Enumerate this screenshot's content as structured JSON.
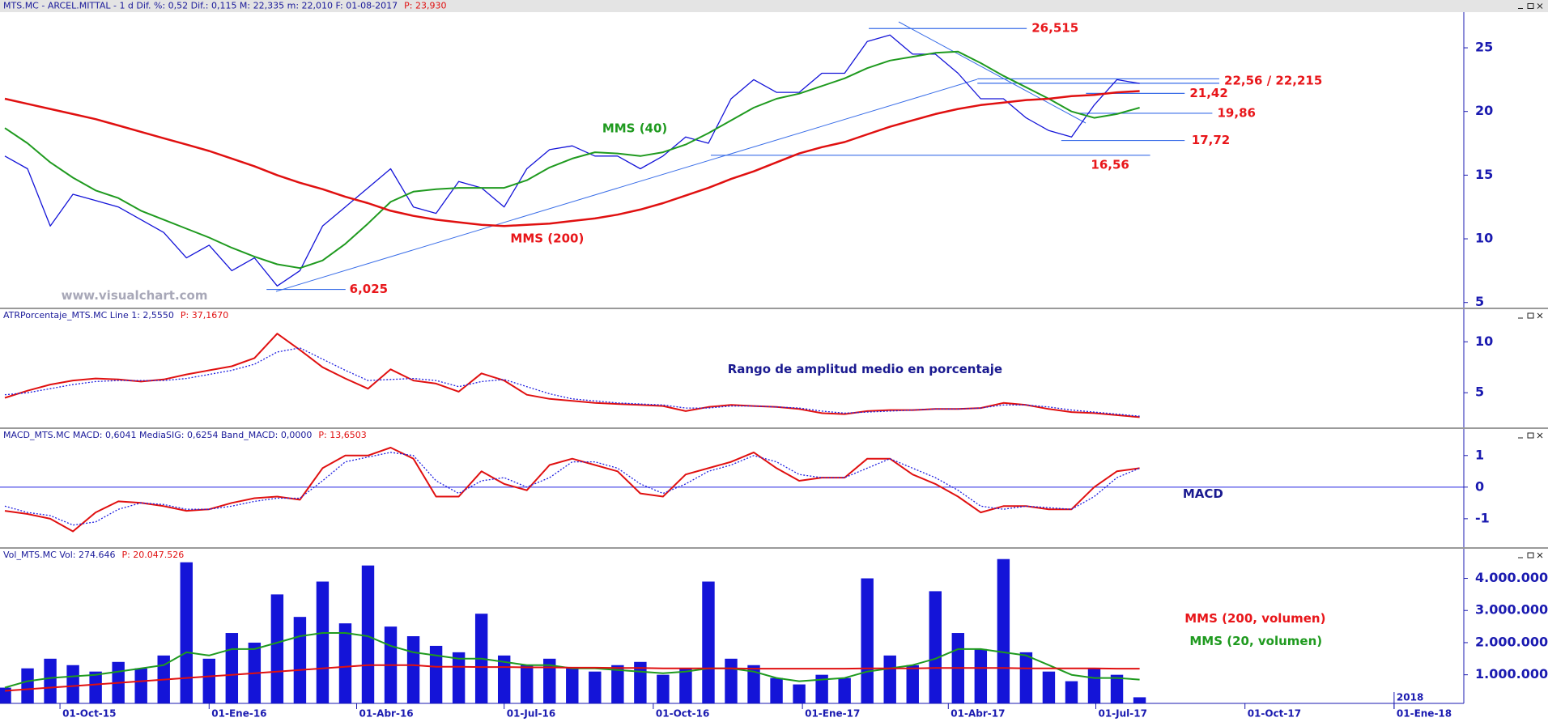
{
  "chart_data": {
    "type": "financial",
    "x": [
      "2015-08-28",
      "2015-09-11",
      "2015-09-25",
      "2015-10-09",
      "2015-10-23",
      "2015-11-06",
      "2015-11-20",
      "2015-12-04",
      "2015-12-18",
      "2016-01-01",
      "2016-01-15",
      "2016-01-29",
      "2016-02-12",
      "2016-02-26",
      "2016-03-11",
      "2016-03-25",
      "2016-04-08",
      "2016-04-22",
      "2016-05-06",
      "2016-05-20",
      "2016-06-03",
      "2016-06-17",
      "2016-07-01",
      "2016-07-15",
      "2016-07-29",
      "2016-08-12",
      "2016-08-26",
      "2016-09-09",
      "2016-09-23",
      "2016-10-07",
      "2016-10-21",
      "2016-11-04",
      "2016-11-18",
      "2016-12-02",
      "2016-12-16",
      "2016-12-30",
      "2017-01-13",
      "2017-01-27",
      "2017-02-10",
      "2017-02-24",
      "2017-03-10",
      "2017-03-24",
      "2017-04-07",
      "2017-04-21",
      "2017-05-05",
      "2017-05-19",
      "2017-06-02",
      "2017-06-16",
      "2017-06-30",
      "2017-07-14",
      "2017-07-28"
    ],
    "xlim": [
      "2015-08-25",
      "2018-02-13"
    ],
    "xticks": [
      {
        "value": "2015-10-01",
        "label": "01-Oct-15"
      },
      {
        "value": "2016-01-01",
        "label": "01-Ene-16"
      },
      {
        "value": "2016-04-01",
        "label": "01-Abr-16"
      },
      {
        "value": "2016-07-01",
        "label": "01-Jul-16"
      },
      {
        "value": "2016-10-01",
        "label": "01-Oct-16"
      },
      {
        "value": "2017-01-01",
        "label": "01-Ene-17"
      },
      {
        "value": "2017-04-01",
        "label": "01-Abr-17"
      },
      {
        "value": "2017-07-01",
        "label": "01-Jul-17"
      },
      {
        "value": "2017-10-01",
        "label": "01-Oct-17"
      },
      {
        "value": "2018-01-01",
        "label": "01-Ene-18"
      }
    ],
    "year_marker": {
      "value": "2018-01-01",
      "label": "2018"
    },
    "panels": [
      {
        "header": "MTS.MC - ARCEL.MITTAL -  1 d  Dif. %: 0,52  Dif.: 0,115  M: 22,335  m: 22,010  F: 01-08-2017",
        "header_p": "P: 23,930",
        "watermark": "www.visualchart.com",
        "ylim": [
          4.6,
          27.8
        ],
        "yticks": [
          5,
          10,
          15,
          20,
          25
        ],
        "series": [
          {
            "type": "line",
            "color": "#1414d8",
            "values": [
              16.5,
              15.5,
              11,
              13.5,
              13,
              12.5,
              11.5,
              10.5,
              8.5,
              9.5,
              7.5,
              8.5,
              6.3,
              7.5,
              11,
              12.5,
              14,
              15.5,
              12.5,
              12,
              14.5,
              14,
              12.5,
              15.5,
              17,
              17.3,
              16.5,
              16.5,
              15.5,
              16.5,
              18,
              17.5,
              21,
              22.5,
              21.5,
              21.5,
              23,
              23,
              25.5,
              26,
              24.5,
              24.5,
              23,
              21,
              21,
              19.5,
              18.5,
              18,
              20.5,
              22.5,
              22.2
            ]
          },
          {
            "type": "line",
            "color": "#1f9a1f",
            "width": 2,
            "values": [
              18.7,
              17.5,
              16,
              14.8,
              13.8,
              13.2,
              12.2,
              11.5,
              10.8,
              10.1,
              9.3,
              8.6,
              8.0,
              7.7,
              8.3,
              9.6,
              11.2,
              12.9,
              13.7,
              13.9,
              14,
              14,
              14,
              14.6,
              15.6,
              16.3,
              16.8,
              16.7,
              16.5,
              16.8,
              17.4,
              18.3,
              19.3,
              20.3,
              21,
              21.4,
              22,
              22.6,
              23.4,
              24,
              24.3,
              24.6,
              24.7,
              23.8,
              22.8,
              21.9,
              21,
              20,
              19.5,
              19.8,
              20.3
            ]
          },
          {
            "type": "line",
            "color": "#e01010",
            "width": 2.5,
            "values": [
              21,
              20.6,
              20.2,
              19.8,
              19.4,
              18.9,
              18.4,
              17.9,
              17.4,
              16.9,
              16.3,
              15.7,
              15.0,
              14.4,
              13.9,
              13.3,
              12.8,
              12.2,
              11.8,
              11.5,
              11.3,
              11.1,
              11.0,
              11.1,
              11.2,
              11.4,
              11.6,
              11.9,
              12.3,
              12.8,
              13.4,
              14.0,
              14.7,
              15.3,
              16.0,
              16.7,
              17.2,
              17.6,
              18.2,
              18.8,
              19.3,
              19.8,
              20.2,
              20.5,
              20.7,
              20.9,
              21.0,
              21.2,
              21.3,
              21.5,
              21.6
            ]
          }
        ],
        "levels": [
          {
            "value": 26.515,
            "label": "26,515"
          },
          {
            "values": [
              22.56,
              22.215
            ],
            "label": "22,56 / 22,215"
          },
          {
            "value": 21.42,
            "label": "21,42"
          },
          {
            "value": 19.86,
            "label": "19,86"
          },
          {
            "value": 17.72,
            "label": "17,72"
          },
          {
            "value": 16.56,
            "label": "16,56"
          },
          {
            "value": 6.025,
            "label": "6,025"
          }
        ],
        "level_color": "#3a6ee8",
        "level_label_color": "#e8161a",
        "annotations": [
          {
            "text": "MMS (40)",
            "color": "#1f9a1f"
          },
          {
            "text": "MMS (200)",
            "color": "#e8161a"
          }
        ]
      },
      {
        "header": "ATRPorcentaje_MTS.MC  Line 1: 2,5550",
        "header_p": "P: 37,1670",
        "ylim": [
          1.6,
          13.2
        ],
        "yticks": [
          5,
          10
        ],
        "series": [
          {
            "type": "line",
            "color": "#e01010",
            "width": 2,
            "values": [
              4.5,
              5.2,
              5.8,
              6.2,
              6.4,
              6.3,
              6.1,
              6.3,
              6.8,
              7.2,
              7.6,
              8.4,
              10.8,
              9.2,
              7.5,
              6.4,
              5.4,
              7.3,
              6.2,
              5.9,
              5.1,
              6.9,
              6.2,
              4.8,
              4.4,
              4.2,
              4.0,
              3.9,
              3.8,
              3.7,
              3.2,
              3.6,
              3.8,
              3.7,
              3.6,
              3.4,
              3.0,
              2.9,
              3.2,
              3.3,
              3.3,
              3.4,
              3.4,
              3.5,
              4.0,
              3.8,
              3.4,
              3.1,
              3.0,
              2.8,
              2.6
            ]
          },
          {
            "type": "line",
            "color": "#2020e0",
            "style": "dotted",
            "values": [
              4.8,
              5.0,
              5.4,
              5.8,
              6.1,
              6.2,
              6.2,
              6.2,
              6.4,
              6.8,
              7.2,
              7.8,
              9.0,
              9.4,
              8.3,
              7.2,
              6.2,
              6.3,
              6.4,
              6.2,
              5.6,
              6.1,
              6.3,
              5.6,
              4.9,
              4.4,
              4.2,
              4.0,
              3.9,
              3.8,
              3.5,
              3.5,
              3.7,
              3.7,
              3.6,
              3.5,
              3.2,
              3.0,
              3.1,
              3.2,
              3.3,
              3.4,
              3.4,
              3.5,
              3.8,
              3.8,
              3.6,
              3.3,
              3.1,
              2.9,
              2.7
            ]
          }
        ],
        "annotations": [
          {
            "text": "Rango de amplitud medio en porcentaje",
            "color": "#1a1a90"
          }
        ]
      },
      {
        "header": "MACD_MTS.MC  MACD: 0,6041  MediaSIG: 0,6254  Band_MACD: 0,0000",
        "header_p": "P: 13,6503",
        "ylim": [
          -1.9,
          1.84
        ],
        "yticks": [
          -1,
          0,
          1
        ],
        "baseline": 0,
        "baseline_color": "#2020e0",
        "series": [
          {
            "type": "line",
            "color": "#e01010",
            "width": 2,
            "values": [
              -0.75,
              -0.85,
              -1.0,
              -1.4,
              -0.8,
              -0.45,
              -0.5,
              -0.6,
              -0.75,
              -0.7,
              -0.5,
              -0.35,
              -0.3,
              -0.4,
              0.6,
              1.0,
              1.0,
              1.25,
              0.9,
              -0.3,
              -0.3,
              0.5,
              0.1,
              -0.1,
              0.7,
              0.9,
              0.7,
              0.5,
              -0.2,
              -0.3,
              0.4,
              0.6,
              0.8,
              1.1,
              0.6,
              0.2,
              0.3,
              0.3,
              0.9,
              0.9,
              0.4,
              0.1,
              -0.3,
              -0.8,
              -0.6,
              -0.6,
              -0.7,
              -0.7,
              0.0,
              0.5,
              0.6
            ]
          },
          {
            "type": "line",
            "color": "#2020e0",
            "style": "dotted",
            "values": [
              -0.6,
              -0.8,
              -0.9,
              -1.2,
              -1.1,
              -0.7,
              -0.5,
              -0.55,
              -0.7,
              -0.7,
              -0.6,
              -0.45,
              -0.35,
              -0.35,
              0.2,
              0.8,
              0.95,
              1.1,
              1.0,
              0.2,
              -0.2,
              0.2,
              0.3,
              0.0,
              0.3,
              0.8,
              0.8,
              0.6,
              0.1,
              -0.2,
              0.1,
              0.5,
              0.7,
              1.0,
              0.8,
              0.4,
              0.3,
              0.3,
              0.6,
              0.9,
              0.6,
              0.3,
              -0.1,
              -0.6,
              -0.7,
              -0.6,
              -0.65,
              -0.7,
              -0.3,
              0.3,
              0.6
            ]
          }
        ],
        "annotations": [
          {
            "text": "MACD",
            "color": "#1a1a90"
          }
        ]
      },
      {
        "header": "Vol_MTS.MC  Vol: 274.646",
        "header_p": "P: 20.047.526",
        "ylim": [
          110000,
          4920000
        ],
        "yticks": [
          {
            "value": 1000000,
            "label": "1.000.000"
          },
          {
            "value": 2000000,
            "label": "2.000.000"
          },
          {
            "value": 3000000,
            "label": "3.000.000"
          },
          {
            "value": 4000000,
            "label": "4.000.000"
          }
        ],
        "series": [
          {
            "type": "bar",
            "color": "#1414d8",
            "values": [
              600000,
              1200000,
              1500000,
              1300000,
              1100000,
              1400000,
              1200000,
              1600000,
              4500000,
              1500000,
              2300000,
              2000000,
              3500000,
              2800000,
              3900000,
              2600000,
              4400000,
              2500000,
              2200000,
              1900000,
              1700000,
              2900000,
              1600000,
              1300000,
              1500000,
              1200000,
              1100000,
              1300000,
              1400000,
              1000000,
              1200000,
              3900000,
              1500000,
              1300000,
              900000,
              700000,
              1000000,
              900000,
              4000000,
              1600000,
              1300000,
              3600000,
              2300000,
              1800000,
              4600000,
              1700000,
              1100000,
              800000,
              1200000,
              1000000,
              300000
            ]
          },
          {
            "type": "line",
            "color": "#1f9a1f",
            "width": 2,
            "values": [
              600000,
              800000,
              900000,
              950000,
              1000000,
              1100000,
              1200000,
              1300000,
              1700000,
              1600000,
              1800000,
              1800000,
              2000000,
              2200000,
              2300000,
              2300000,
              2200000,
              1900000,
              1700000,
              1600000,
              1500000,
              1500000,
              1400000,
              1300000,
              1300000,
              1200000,
              1200000,
              1150000,
              1100000,
              1050000,
              1100000,
              1200000,
              1200000,
              1100000,
              900000,
              800000,
              850000,
              900000,
              1100000,
              1200000,
              1300000,
              1500000,
              1800000,
              1800000,
              1700000,
              1600000,
              1300000,
              1000000,
              900000,
              900000,
              850000
            ]
          },
          {
            "type": "line",
            "color": "#e01010",
            "width": 2,
            "values": [
              500000,
              550000,
              600000,
              650000,
              700000,
              750000,
              800000,
              850000,
              900000,
              950000,
              1000000,
              1050000,
              1100000,
              1150000,
              1200000,
              1250000,
              1300000,
              1300000,
              1300000,
              1250000,
              1250000,
              1240000,
              1240000,
              1230000,
              1230000,
              1220000,
              1220000,
              1210000,
              1210000,
              1200000,
              1200000,
              1200000,
              1200000,
              1190000,
              1190000,
              1190000,
              1190000,
              1190000,
              1200000,
              1200000,
              1200000,
              1210000,
              1210000,
              1210000,
              1210000,
              1200000,
              1200000,
              1200000,
              1200000,
              1190000,
              1190000
            ]
          }
        ],
        "annotations": [
          {
            "text": "MMS (200, volumen)",
            "color": "#e8161a"
          },
          {
            "text": "MMS (20, volumen)",
            "color": "#1f9a1f"
          }
        ]
      }
    ]
  }
}
